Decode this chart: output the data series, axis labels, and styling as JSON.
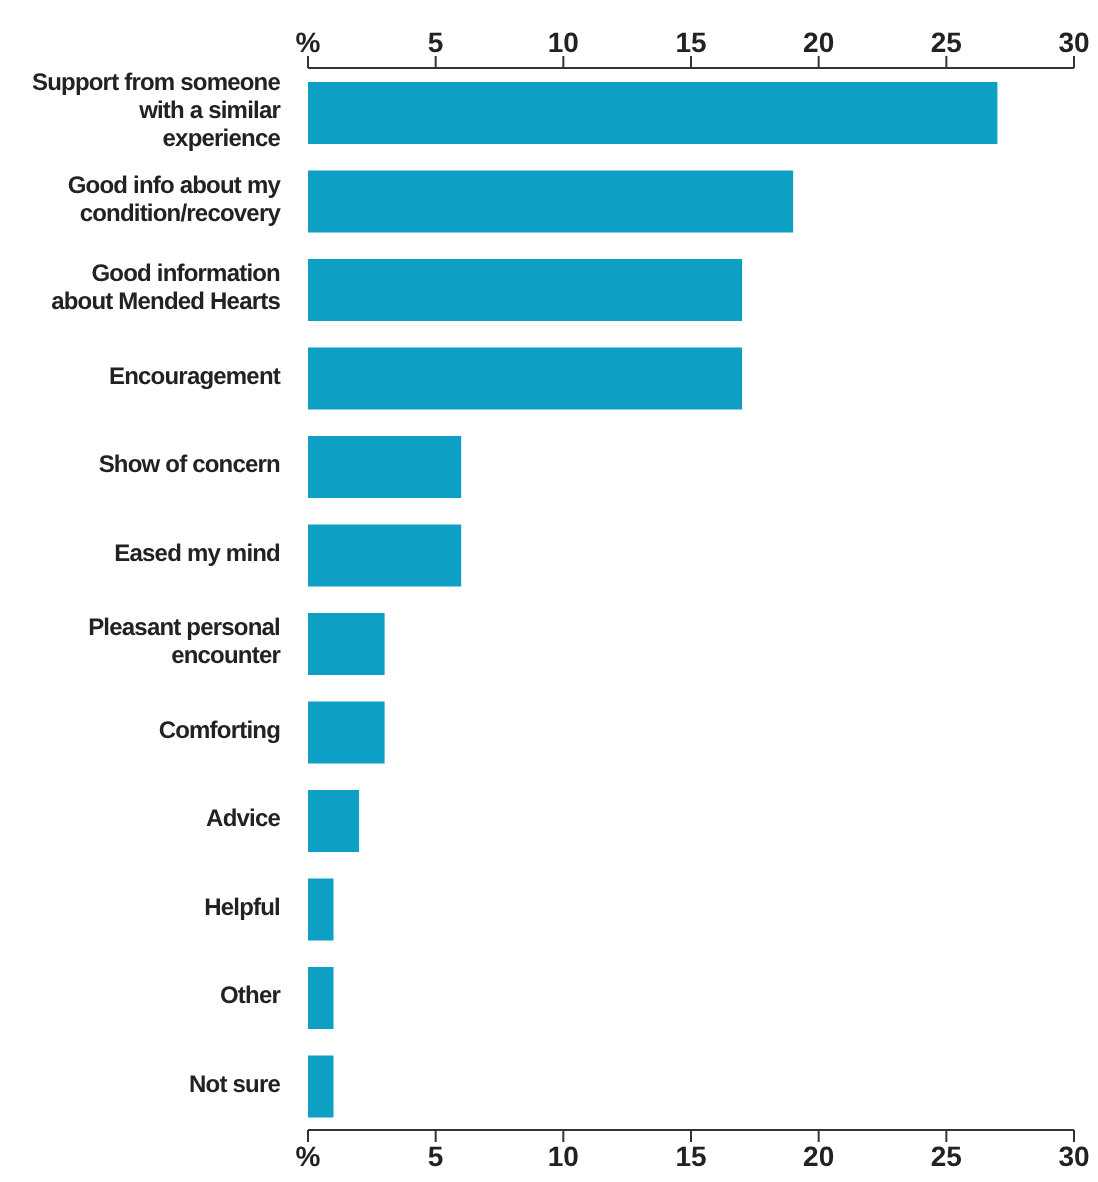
{
  "chart_data": {
    "type": "bar",
    "orientation": "horizontal",
    "categories": [
      "Support from someone with a similar experience",
      "Good info  about my condition/recovery",
      "Good information about Mended Hearts",
      "Encouragement",
      "Show of concern",
      "Eased my mind",
      "Pleasant personal encounter",
      "Comforting",
      "Advice",
      "Helpful",
      "Other",
      "Not sure"
    ],
    "values": [
      27,
      19,
      17,
      17,
      6,
      6,
      3,
      3,
      2,
      1,
      1,
      1
    ],
    "color": "#0ea0c4",
    "xlim": [
      0,
      30
    ],
    "xticks": [
      {
        "value": 0,
        "label": "%"
      },
      5,
      10,
      15,
      20,
      25,
      30
    ],
    "x2lim": [
      0,
      30
    ],
    "x2ticks": [
      {
        "value": 0,
        "label": "%"
      },
      5,
      10,
      15,
      20,
      25,
      30
    ],
    "grid": false,
    "legend": false
  }
}
